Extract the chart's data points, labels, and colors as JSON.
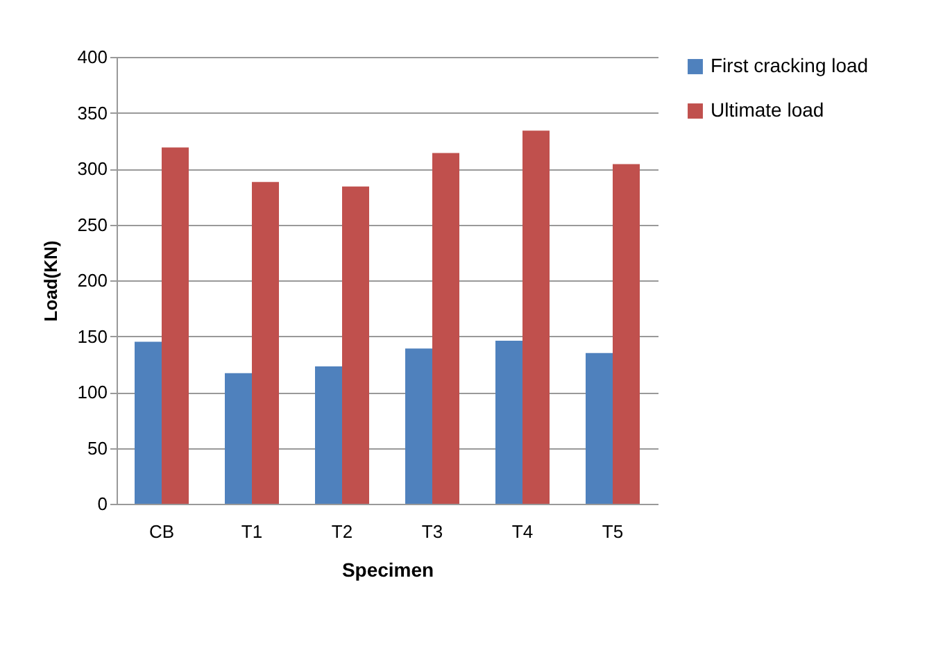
{
  "chart_data": {
    "type": "bar",
    "xlabel": "Specimen",
    "ylabel": "Load(KN)",
    "categories": [
      "CB",
      "T1",
      "T2",
      "T3",
      "T4",
      "T5"
    ],
    "series": [
      {
        "name": "First cracking load",
        "color": "#4f81bd",
        "values": [
          145,
          117,
          123,
          139,
          146,
          135
        ]
      },
      {
        "name": "Ultimate  load",
        "color": "#c0504d",
        "values": [
          319,
          288,
          284,
          314,
          334,
          304
        ]
      }
    ],
    "ylim": [
      0,
      400
    ],
    "yticks": [
      0,
      50,
      100,
      150,
      200,
      250,
      300,
      350,
      400
    ],
    "grid": "y",
    "legend": "right"
  }
}
